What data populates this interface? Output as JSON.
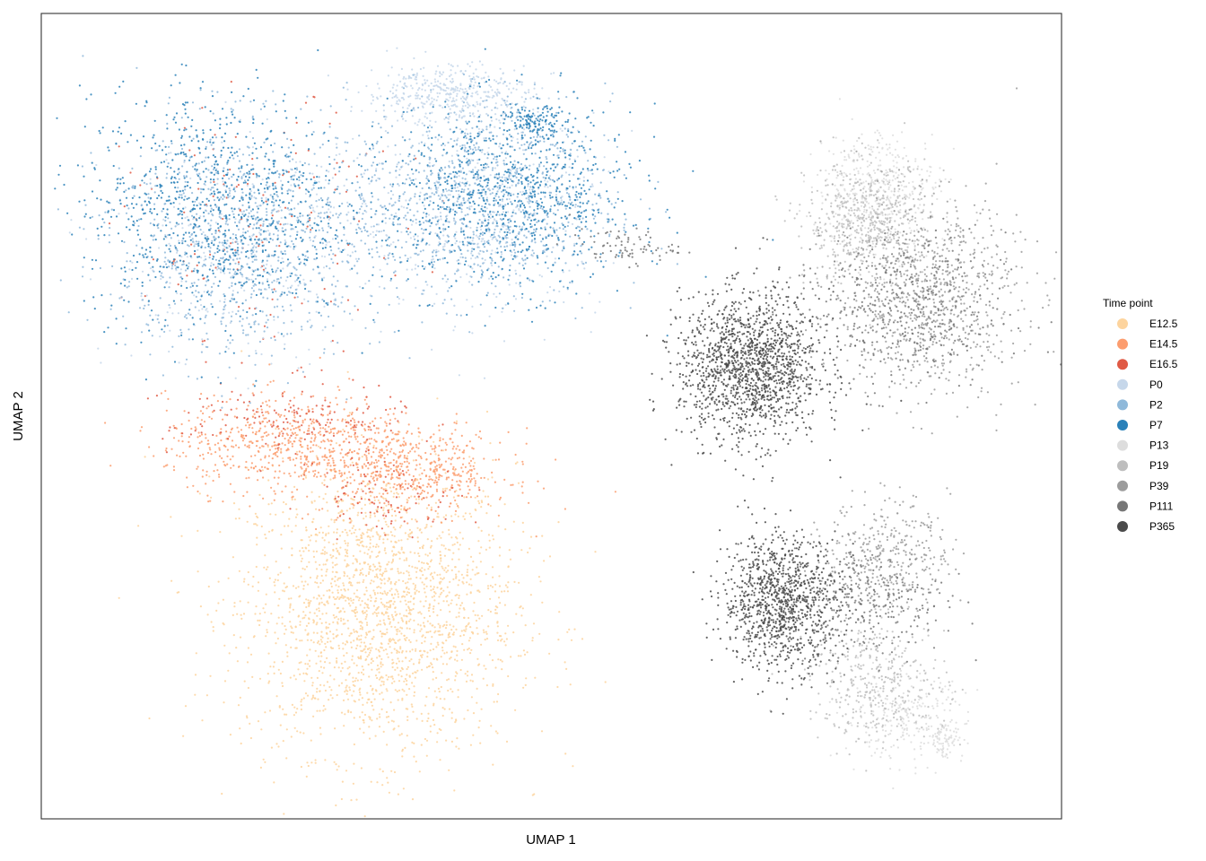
{
  "chart_data": {
    "type": "scatter",
    "title": "",
    "xlabel": "UMAP 1",
    "ylabel": "UMAP 2",
    "xlim": [
      0,
      100
    ],
    "ylim": [
      0,
      100
    ],
    "ticks_shown": false,
    "grid": false,
    "legend": {
      "title": "Time point",
      "placement": "right"
    },
    "series": [
      {
        "name": "E12.5",
        "color": "#FDD49E",
        "clusters": [
          {
            "cx": 33.0,
            "cy": 26.0,
            "sx": 9.0,
            "sy": 12.0,
            "n": 2200
          }
        ]
      },
      {
        "name": "E14.5",
        "color": "#FC9D6F",
        "clusters": [
          {
            "cx": 25.0,
            "cy": 46.5,
            "sx": 8.5,
            "sy": 4.0,
            "n": 700
          },
          {
            "cx": 37.0,
            "cy": 43.0,
            "sx": 6.0,
            "sy": 3.5,
            "n": 450
          }
        ]
      },
      {
        "name": "E16.5",
        "color": "#E05A45",
        "clusters": [
          {
            "cx": 24.0,
            "cy": 49.5,
            "sx": 8.0,
            "sy": 3.0,
            "n": 160
          },
          {
            "cx": 22.0,
            "cy": 73.0,
            "sx": 9.0,
            "sy": 10.0,
            "n": 140
          },
          {
            "cx": 34.0,
            "cy": 40.0,
            "sx": 5.0,
            "sy": 3.0,
            "n": 90
          }
        ]
      },
      {
        "name": "P0",
        "color": "#C6D7EA",
        "clusters": [
          {
            "cx": 40.0,
            "cy": 90.0,
            "sx": 5.5,
            "sy": 2.5,
            "n": 420
          },
          {
            "cx": 43.0,
            "cy": 75.0,
            "sx": 8.0,
            "sy": 8.0,
            "n": 450
          },
          {
            "cx": 20.0,
            "cy": 70.0,
            "sx": 9.0,
            "sy": 9.0,
            "n": 320
          }
        ]
      },
      {
        "name": "P2",
        "color": "#8FB9DA",
        "clusters": [
          {
            "cx": 20.0,
            "cy": 72.0,
            "sx": 9.0,
            "sy": 9.5,
            "n": 1000
          },
          {
            "cx": 43.0,
            "cy": 77.0,
            "sx": 8.5,
            "sy": 8.0,
            "n": 1050
          }
        ]
      },
      {
        "name": "P7",
        "color": "#2A81B9",
        "clusters": [
          {
            "cx": 17.0,
            "cy": 76.0,
            "sx": 8.5,
            "sy": 9.5,
            "n": 950
          },
          {
            "cx": 46.0,
            "cy": 77.0,
            "sx": 8.0,
            "sy": 7.5,
            "n": 850
          },
          {
            "cx": 48.5,
            "cy": 86.5,
            "sx": 2.0,
            "sy": 1.2,
            "n": 120
          }
        ]
      },
      {
        "name": "P13",
        "color": "#DDDDDD",
        "clusters": [
          {
            "cx": 82.0,
            "cy": 78.0,
            "sx": 4.0,
            "sy": 5.0,
            "n": 400
          },
          {
            "cx": 84.5,
            "cy": 12.5,
            "sx": 4.0,
            "sy": 3.5,
            "n": 250
          },
          {
            "cx": 88.5,
            "cy": 10.0,
            "sx": 1.2,
            "sy": 1.6,
            "n": 80
          }
        ]
      },
      {
        "name": "P19",
        "color": "#BEBEBE",
        "clusters": [
          {
            "cx": 81.0,
            "cy": 74.0,
            "sx": 4.0,
            "sy": 5.0,
            "n": 550
          },
          {
            "cx": 82.0,
            "cy": 17.0,
            "sx": 4.5,
            "sy": 5.0,
            "n": 380
          }
        ]
      },
      {
        "name": "P39",
        "color": "#9C9C9C",
        "clusters": [
          {
            "cx": 87.0,
            "cy": 65.0,
            "sx": 6.0,
            "sy": 8.0,
            "n": 800
          },
          {
            "cx": 83.0,
            "cy": 33.0,
            "sx": 4.0,
            "sy": 4.5,
            "n": 350
          }
        ]
      },
      {
        "name": "P111",
        "color": "#777777",
        "clusters": [
          {
            "cx": 84.0,
            "cy": 63.0,
            "sx": 7.0,
            "sy": 6.5,
            "n": 500
          },
          {
            "cx": 81.0,
            "cy": 27.0,
            "sx": 5.0,
            "sy": 4.5,
            "n": 300
          },
          {
            "cx": 57.0,
            "cy": 71.0,
            "sx": 3.5,
            "sy": 1.5,
            "n": 80
          }
        ]
      },
      {
        "name": "P365",
        "color": "#4A4A4A",
        "clusters": [
          {
            "cx": 69.5,
            "cy": 56.0,
            "sx": 4.6,
            "sy": 6.0,
            "n": 1500
          },
          {
            "cx": 72.5,
            "cy": 27.0,
            "sx": 3.8,
            "sy": 5.5,
            "n": 1050
          }
        ]
      }
    ]
  }
}
